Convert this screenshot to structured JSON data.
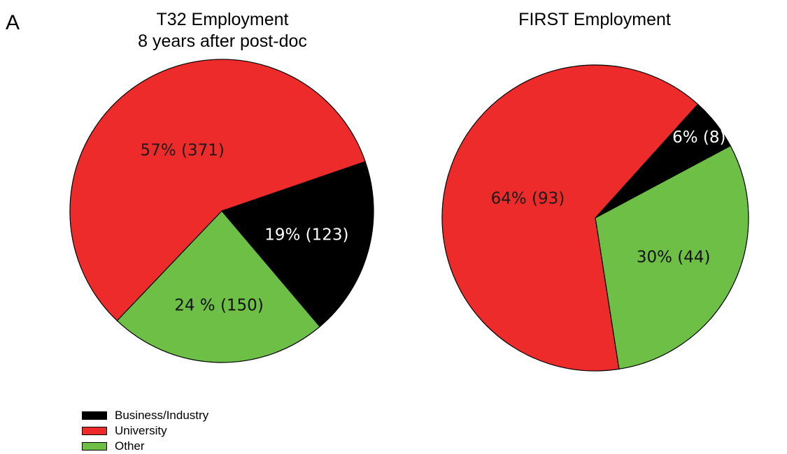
{
  "panel_letter": "A",
  "colors": {
    "Business/Industry": "#000000",
    "University": "#ee2b2b",
    "Other": "#6dbf45"
  },
  "chart_data": [
    {
      "type": "pie",
      "title": "T32 Employment",
      "subtitle": "8 years after post-doc",
      "slices": [
        {
          "category": "Business/Industry",
          "percent": 19,
          "count": 123,
          "label": "19% (123)"
        },
        {
          "category": "Other",
          "percent": 24,
          "count": 150,
          "label": "24 % (150)"
        },
        {
          "category": "University",
          "percent": 57,
          "count": 371,
          "label": "57% (371)"
        }
      ]
    },
    {
      "type": "pie",
      "title": "FIRST Employment",
      "subtitle": "",
      "slices": [
        {
          "category": "Business/Industry",
          "percent": 6,
          "count": 8,
          "label": "6% (8)"
        },
        {
          "category": "Other",
          "percent": 30,
          "count": 44,
          "label": "30% (44)"
        },
        {
          "category": "University",
          "percent": 64,
          "count": 93,
          "label": "64% (93)"
        }
      ]
    }
  ],
  "legend": {
    "position": "bottom-left",
    "items": [
      {
        "label": "Business/Industry",
        "color": "#000000"
      },
      {
        "label": "University",
        "color": "#ee2b2b"
      },
      {
        "label": "Other",
        "color": "#6dbf45"
      }
    ]
  }
}
